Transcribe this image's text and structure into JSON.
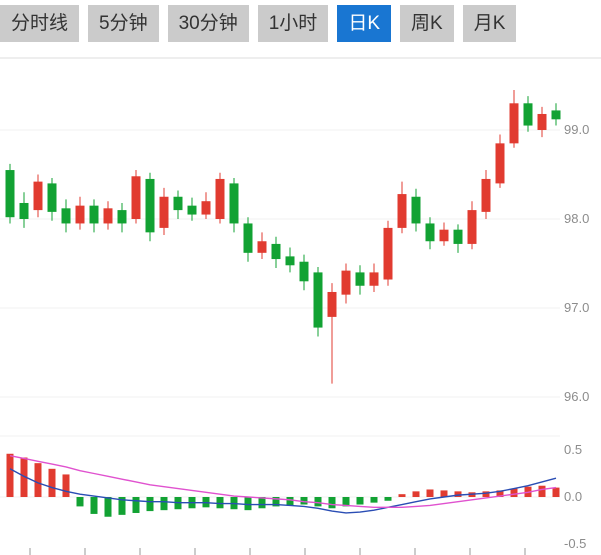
{
  "tabs": [
    {
      "label": "分时线",
      "active": false
    },
    {
      "label": "5分钟",
      "active": false
    },
    {
      "label": "30分钟",
      "active": false
    },
    {
      "label": "1小时",
      "active": false
    },
    {
      "label": "日K",
      "active": true
    },
    {
      "label": "周K",
      "active": false
    },
    {
      "label": "月K",
      "active": false
    }
  ],
  "colors": {
    "tab_bg": "#cbcbcb",
    "tab_text": "#333333",
    "tab_active_bg": "#1976d2",
    "tab_active_text": "#ffffff",
    "up": "#e13b30",
    "down": "#12a233",
    "dif_line": "#2a4db4",
    "dea_line": "#e052cf",
    "axis_text": "#8c8c8c",
    "grid": "#f2f2f2",
    "divider": "#dddddd",
    "tick": "#999999"
  },
  "chart_data": {
    "type": "candlestick+macd",
    "title": "",
    "legend": "none",
    "grid": "faint",
    "price_axis": {
      "side": "right",
      "min": 95.6,
      "max": 99.8,
      "ticks": [
        {
          "label": "99.0",
          "value": 99.0
        },
        {
          "label": "98.0",
          "value": 98.0
        },
        {
          "label": "97.0",
          "value": 97.0
        },
        {
          "label": "96.0",
          "value": 96.0
        }
      ]
    },
    "candles": [
      {
        "o": 98.55,
        "h": 98.62,
        "l": 97.95,
        "c": 98.02
      },
      {
        "o": 98.18,
        "h": 98.3,
        "l": 97.9,
        "c": 98.0
      },
      {
        "o": 98.1,
        "h": 98.5,
        "l": 98.02,
        "c": 98.42
      },
      {
        "o": 98.4,
        "h": 98.46,
        "l": 97.98,
        "c": 98.08
      },
      {
        "o": 98.12,
        "h": 98.22,
        "l": 97.85,
        "c": 97.95
      },
      {
        "o": 97.95,
        "h": 98.25,
        "l": 97.88,
        "c": 98.15
      },
      {
        "o": 98.15,
        "h": 98.22,
        "l": 97.85,
        "c": 97.95
      },
      {
        "o": 97.95,
        "h": 98.2,
        "l": 97.88,
        "c": 98.12
      },
      {
        "o": 98.1,
        "h": 98.18,
        "l": 97.85,
        "c": 97.95
      },
      {
        "o": 98.0,
        "h": 98.55,
        "l": 97.95,
        "c": 98.48
      },
      {
        "o": 98.45,
        "h": 98.52,
        "l": 97.75,
        "c": 97.85
      },
      {
        "o": 97.9,
        "h": 98.35,
        "l": 97.82,
        "c": 98.25
      },
      {
        "o": 98.25,
        "h": 98.32,
        "l": 98.0,
        "c": 98.1
      },
      {
        "o": 98.15,
        "h": 98.24,
        "l": 97.98,
        "c": 98.05
      },
      {
        "o": 98.05,
        "h": 98.3,
        "l": 98.0,
        "c": 98.2
      },
      {
        "o": 98.0,
        "h": 98.52,
        "l": 97.95,
        "c": 98.45
      },
      {
        "o": 98.4,
        "h": 98.46,
        "l": 97.85,
        "c": 97.95
      },
      {
        "o": 97.95,
        "h": 98.02,
        "l": 97.52,
        "c": 97.62
      },
      {
        "o": 97.62,
        "h": 97.85,
        "l": 97.55,
        "c": 97.75
      },
      {
        "o": 97.72,
        "h": 97.8,
        "l": 97.45,
        "c": 97.55
      },
      {
        "o": 97.58,
        "h": 97.68,
        "l": 97.4,
        "c": 97.48
      },
      {
        "o": 97.52,
        "h": 97.6,
        "l": 97.2,
        "c": 97.3
      },
      {
        "o": 97.4,
        "h": 97.46,
        "l": 96.68,
        "c": 96.78
      },
      {
        "o": 96.9,
        "h": 97.28,
        "l": 96.15,
        "c": 97.18
      },
      {
        "o": 97.15,
        "h": 97.5,
        "l": 97.05,
        "c": 97.42
      },
      {
        "o": 97.4,
        "h": 97.48,
        "l": 97.15,
        "c": 97.25
      },
      {
        "o": 97.25,
        "h": 97.5,
        "l": 97.18,
        "c": 97.4
      },
      {
        "o": 97.32,
        "h": 97.98,
        "l": 97.25,
        "c": 97.9
      },
      {
        "o": 97.9,
        "h": 98.42,
        "l": 97.84,
        "c": 98.28
      },
      {
        "o": 98.25,
        "h": 98.34,
        "l": 97.86,
        "c": 97.95
      },
      {
        "o": 97.95,
        "h": 98.02,
        "l": 97.66,
        "c": 97.75
      },
      {
        "o": 97.75,
        "h": 97.96,
        "l": 97.7,
        "c": 97.88
      },
      {
        "o": 97.88,
        "h": 97.94,
        "l": 97.62,
        "c": 97.72
      },
      {
        "o": 97.72,
        "h": 98.2,
        "l": 97.66,
        "c": 98.1
      },
      {
        "o": 98.08,
        "h": 98.55,
        "l": 98.0,
        "c": 98.45
      },
      {
        "o": 98.4,
        "h": 98.95,
        "l": 98.35,
        "c": 98.85
      },
      {
        "o": 98.85,
        "h": 99.45,
        "l": 98.8,
        "c": 99.3
      },
      {
        "o": 99.3,
        "h": 99.38,
        "l": 98.98,
        "c": 99.05
      },
      {
        "o": 99.0,
        "h": 99.26,
        "l": 98.92,
        "c": 99.18
      },
      {
        "o": 99.22,
        "h": 99.3,
        "l": 99.05,
        "c": 99.12
      }
    ],
    "macd": {
      "axis": {
        "side": "right",
        "min": -0.6,
        "max": 0.6,
        "ticks": [
          {
            "label": "0.5",
            "value": 0.5
          },
          {
            "label": "0.0",
            "value": 0.0
          },
          {
            "label": "-0.5",
            "value": -0.5
          }
        ]
      },
      "hist": [
        0.46,
        0.42,
        0.36,
        0.3,
        0.24,
        -0.1,
        -0.18,
        -0.21,
        -0.19,
        -0.17,
        -0.15,
        -0.14,
        -0.13,
        -0.12,
        -0.11,
        -0.12,
        -0.13,
        -0.14,
        -0.12,
        -0.1,
        -0.09,
        -0.08,
        -0.1,
        -0.12,
        -0.1,
        -0.08,
        -0.06,
        -0.04,
        0.03,
        0.06,
        0.08,
        0.07,
        0.06,
        0.05,
        0.06,
        0.07,
        0.09,
        0.11,
        0.12,
        0.1
      ],
      "dif": [
        0.3,
        0.22,
        0.15,
        0.1,
        0.06,
        0.03,
        0.01,
        -0.01,
        -0.03,
        -0.04,
        -0.05,
        -0.05,
        -0.06,
        -0.06,
        -0.06,
        -0.07,
        -0.07,
        -0.08,
        -0.08,
        -0.08,
        -0.09,
        -0.1,
        -0.12,
        -0.15,
        -0.17,
        -0.16,
        -0.14,
        -0.11,
        -0.08,
        -0.05,
        -0.02,
        0.0,
        0.02,
        0.03,
        0.04,
        0.06,
        0.09,
        0.12,
        0.16,
        0.2
      ],
      "dea": [
        0.44,
        0.41,
        0.38,
        0.35,
        0.32,
        0.28,
        0.25,
        0.22,
        0.19,
        0.16,
        0.13,
        0.11,
        0.09,
        0.07,
        0.05,
        0.03,
        0.01,
        0.0,
        -0.01,
        -0.02,
        -0.03,
        -0.05,
        -0.06,
        -0.08,
        -0.09,
        -0.1,
        -0.11,
        -0.11,
        -0.11,
        -0.1,
        -0.09,
        -0.07,
        -0.05,
        -0.03,
        -0.01,
        0.01,
        0.03,
        0.05,
        0.08,
        0.1
      ]
    }
  }
}
